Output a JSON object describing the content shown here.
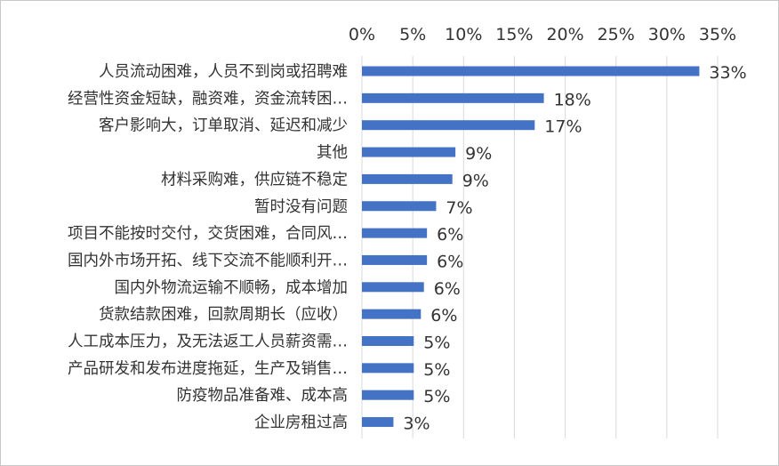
{
  "chart_data": {
    "type": "bar",
    "orientation": "horizontal",
    "title": "",
    "xlabel": "",
    "ylabel": "",
    "xlim": [
      0,
      35
    ],
    "ticks": [
      "0%",
      "5%",
      "10%",
      "15%",
      "20%",
      "25%",
      "30%",
      "35%"
    ],
    "tick_values": [
      0,
      5,
      10,
      15,
      20,
      25,
      30,
      35
    ],
    "axis_position": "top",
    "grid": true,
    "legend": "none",
    "bar_color": "#4472c4",
    "grid_color": "#d9d9d9",
    "categories": [
      "人员流动困难，人员不到岗或招聘难",
      "经营性资金短缺，融资难，资金流转困…",
      "客户影响大，订单取消、延迟和减少",
      "其他",
      "材料采购难，供应链不稳定",
      "暂时没有问题",
      "项目不能按时交付，交货困难，合同风…",
      "国内外市场开拓、线下交流不能顺利开…",
      "国内外物流运输不顺畅，成本增加",
      "货款结款困难，回款周期长（应收）",
      "人工成本压力，及无法返工人员薪资需…",
      "产品研发和发布进度拖延，生产及销售…",
      "防疫物品准备难、成本高",
      "企业房租过高"
    ],
    "values": [
      33.2,
      17.9,
      17.0,
      9.2,
      8.9,
      7.3,
      6.4,
      6.4,
      6.1,
      5.8,
      5.1,
      5.1,
      5.1,
      3.1
    ],
    "data_labels": [
      "33%",
      "18%",
      "17%",
      "9%",
      "9%",
      "7%",
      "6%",
      "6%",
      "6%",
      "6%",
      "5%",
      "5%",
      "5%",
      "3%"
    ]
  }
}
